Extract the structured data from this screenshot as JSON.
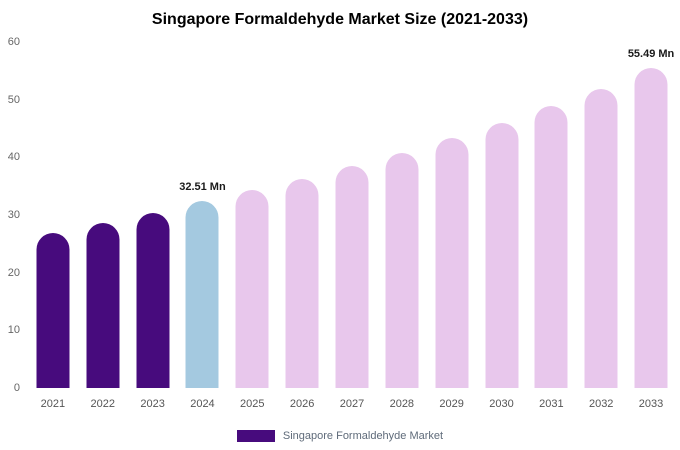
{
  "title": "Singapore Formaldehyde Market Size (2021-2033)",
  "legend": {
    "label": "Singapore Formaldehyde Market",
    "color": "#470b7d"
  },
  "colors": {
    "historical": "#470b7d",
    "current": "#a4c9e0",
    "forecast": "#e8c7ec"
  },
  "chart_data": {
    "type": "bar",
    "title": "Singapore Formaldehyde Market Size (2021-2033)",
    "xlabel": "",
    "ylabel": "",
    "unit": "Mn",
    "categories": [
      "2021",
      "2022",
      "2023",
      "2024",
      "2025",
      "2026",
      "2027",
      "2028",
      "2029",
      "2030",
      "2031",
      "2032",
      "2033"
    ],
    "values": [
      26.9,
      28.6,
      30.3,
      32.51,
      34.4,
      36.3,
      38.5,
      40.8,
      43.4,
      46.0,
      48.9,
      51.9,
      55.49
    ],
    "bar_colors": [
      "#470b7d",
      "#470b7d",
      "#470b7d",
      "#a4c9e0",
      "#e8c7ec",
      "#e8c7ec",
      "#e8c7ec",
      "#e8c7ec",
      "#e8c7ec",
      "#e8c7ec",
      "#e8c7ec",
      "#e8c7ec",
      "#e8c7ec"
    ],
    "annotations": [
      {
        "category": "2024",
        "text": "32.51 Mn"
      },
      {
        "category": "2033",
        "text": "55.49 Mn"
      }
    ],
    "ylim": [
      0,
      60
    ],
    "yticks": [
      0,
      10,
      20,
      30,
      40,
      50,
      60
    ],
    "grid": false,
    "legend_position": "bottom"
  }
}
